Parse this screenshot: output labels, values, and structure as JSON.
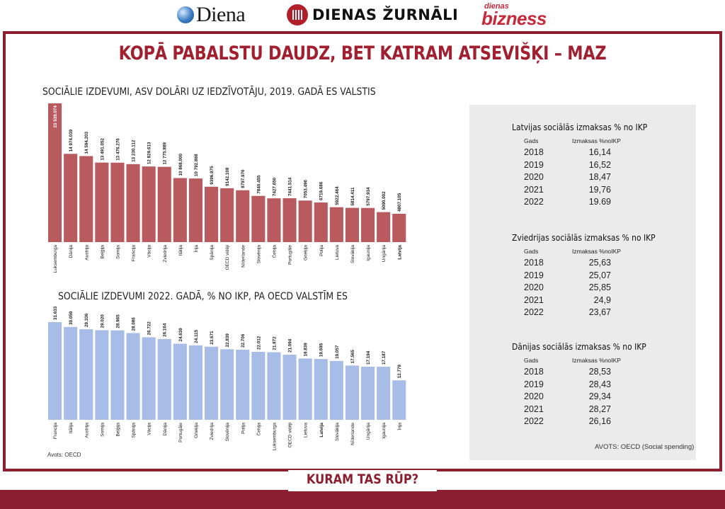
{
  "logos": {
    "diena": "Diena",
    "dienas_zurnali": "DIENAS ŽURNĀLI",
    "dienas_bizness_small": "dienas",
    "dienas_bizness_big": "bizness"
  },
  "headline": "KOPĀ PABALSTU DAUDZ, BET KATRAM ATSEVIŠĶI – MAZ",
  "kicker": "KURAM TAS RŪP?",
  "colors": {
    "frame": "#8c1f2f",
    "bar_red": "#b85a5e",
    "bar_blue": "#a7bde8",
    "panel_bg": "#ebebeb"
  },
  "chart_data": [
    {
      "type": "bar",
      "title": "SOCIĀLIE IZDEVUMI, ASV DOLĀRI UZ IEDZĪVOTĀJU, 2019. GADĀ ES VALSTIS",
      "categories": [
        "Luksemburga",
        "Dānija",
        "Austrija",
        "Beļģija",
        "Somija",
        "Francija",
        "Vācija",
        "Zviedrija",
        "Itālija",
        "Īrija",
        "Spānija",
        "OECD vidēji",
        "Nīderlande",
        "Slovēnija",
        "Čehija",
        "Portugāle",
        "Grieķija",
        "Polija",
        "Lietuva",
        "Slovākija",
        "Igaunija",
        "Ungārija",
        "Latvija"
      ],
      "values": [
        23539.074,
        14974.039,
        14594.203,
        13491.052,
        13476.276,
        13230.112,
        12829.613,
        12775.889,
        10868.0,
        10792.868,
        9396.975,
        9142.108,
        8797.976,
        7840.455,
        7427.65,
        7441.514,
        7053.496,
        6719.686,
        5922.464,
        5814.411,
        5797.934,
        5090.002,
        4807.105
      ],
      "labels": [
        "23 539.074",
        "14 974.039",
        "14 594.203",
        "13 491.052",
        "13 476.276",
        "13 230.112",
        "12 829.613",
        "12 775.889",
        "10 868.000",
        "10 792.868",
        "9396.975",
        "9142.108",
        "8797.976",
        "7840.455",
        "7427.650",
        "7441.514",
        "7053.496",
        "6719.686",
        "5922.464",
        "5814.411",
        "5797.934",
        "5090.002",
        "4807.105"
      ],
      "highlight": "Latvija",
      "color": "#b85a5e"
    },
    {
      "type": "bar",
      "title": "SOCIĀLIE IZDEVUMI 2022. GADĀ, % NO IKP, PA OECD VALSTĪM ES",
      "categories": [
        "Francija",
        "Itālija",
        "Austrija",
        "Somija",
        "Beļģija",
        "Spānija",
        "Vācija",
        "Dānija",
        "Portugāle",
        "Grieķija",
        "Zviedrija",
        "Slovēnija",
        "Polija",
        "Čehija",
        "Luksemburga",
        "OECD vidēji",
        "Lietuva",
        "Latvija",
        "Slovākija",
        "Nīderlande",
        "Ungārija",
        "Igaunija",
        "Īrija"
      ],
      "values": [
        31.633,
        30.059,
        29.336,
        29.02,
        28.965,
        28.086,
        26.722,
        26.164,
        24.639,
        24.115,
        23.671,
        22.839,
        22.706,
        22.012,
        21.872,
        21.094,
        19.839,
        19.695,
        19.057,
        17.565,
        17.194,
        17.187,
        12.779
      ],
      "labels": [
        "31.633",
        "30.059",
        "29.336",
        "29.020",
        "28.965",
        "28.086",
        "26.722",
        "26.164",
        "24.639",
        "24.115",
        "23.671",
        "22.839",
        "22.706",
        "22.012",
        "21.872",
        "21.094",
        "19.839",
        "19.695",
        "19.057",
        "17.565",
        "17.194",
        "17.187",
        "12.779"
      ],
      "highlight": "Latvija",
      "color": "#a7bde8"
    }
  ],
  "source_left": "Avots: OECD",
  "tables": [
    {
      "title": "Latvijas sociālās izmaksas % no IKP",
      "headers": [
        "Gads",
        "Izmaksas %noIKP"
      ],
      "rows": [
        [
          "2018",
          "16,14"
        ],
        [
          "2019",
          "16,52"
        ],
        [
          "2020",
          "18,47"
        ],
        [
          "2021",
          "19,76"
        ],
        [
          "2022",
          "19.69"
        ]
      ]
    },
    {
      "title": "Zviedrijas sociālās izmaksas % no IKP",
      "headers": [
        "Gads",
        "Izmaksas %noIKP"
      ],
      "rows": [
        [
          "2018",
          "25,63"
        ],
        [
          "2019",
          "25,07"
        ],
        [
          "2020",
          "25,85"
        ],
        [
          "2021",
          "24,9"
        ],
        [
          "2022",
          "23,67"
        ]
      ]
    },
    {
      "title": "Dānijas sociālās izmaksas % no IKP",
      "headers": [
        "Gads",
        "Izmaksas %noIKP"
      ],
      "rows": [
        [
          "2018",
          "28,53"
        ],
        [
          "2019",
          "28,43"
        ],
        [
          "2020",
          "29,34"
        ],
        [
          "2021",
          "28,27"
        ],
        [
          "2022",
          "26,16"
        ]
      ]
    }
  ],
  "source_right": "AVOTS: OECD (Social spending)"
}
